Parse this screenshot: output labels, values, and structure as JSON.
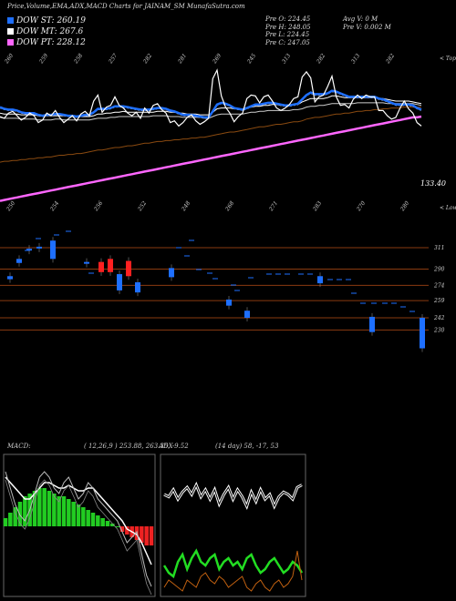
{
  "header": {
    "title": "Price,Volume,EMA,ADX,MACD Charts for JAINAM_SM MunafaSutra.com"
  },
  "legend": [
    {
      "label": "DOW ST: 260.19",
      "color": "#1e6fff"
    },
    {
      "label": "DOW MT: 267.6",
      "color": "#ffffff"
    },
    {
      "label": "DOW PT: 228.12",
      "color": "#ff66ff"
    }
  ],
  "info": {
    "col1": [
      "Pre  O: 224.45",
      "Pre  H: 248.05",
      "Pre  L: 224.45",
      "Pre  C: 247.05"
    ],
    "col2": [
      "Avg V: 0  M",
      "Pre  V: 0.002  M"
    ]
  },
  "right_labels": {
    "tops": "< Tops",
    "lows": "< Lows"
  },
  "price_label": "133.40",
  "chart_data": [
    {
      "type": "line",
      "name": "price",
      "top_labels": [
        "260",
        "259",
        "258",
        "257",
        "282",
        "281",
        "269",
        "245",
        "313",
        "282",
        "313",
        "282"
      ],
      "bottom_labels": [
        "250",
        "254",
        "256",
        "252",
        "248",
        "268",
        "271",
        "283",
        "270",
        "280"
      ],
      "x": [
        0,
        1,
        2,
        3,
        4,
        5,
        6,
        7,
        8,
        9,
        10,
        11,
        12,
        13,
        14,
        15,
        16,
        17,
        18,
        19,
        20,
        21,
        22,
        23,
        24,
        25,
        26,
        27,
        28,
        29,
        30,
        31,
        32,
        33,
        34,
        35,
        36,
        37,
        38,
        39,
        40,
        41,
        42,
        43,
        44,
        45,
        46,
        47,
        48,
        49,
        50,
        51,
        52,
        53,
        54,
        55,
        56,
        57,
        58,
        59,
        60,
        61,
        62,
        63,
        64,
        65,
        66,
        67,
        68,
        69,
        70,
        71,
        72,
        73,
        74,
        75,
        76,
        77,
        78,
        79,
        80,
        81,
        82,
        83,
        84,
        85,
        86,
        87,
        88,
        89,
        90,
        91,
        92,
        93,
        94,
        95,
        96,
        97,
        98,
        99
      ],
      "close": [
        258,
        256,
        262,
        264,
        259,
        254,
        257,
        262,
        259,
        251,
        254,
        262,
        259,
        265,
        257,
        251,
        255,
        259,
        253,
        261,
        264,
        259,
        276,
        283,
        263,
        269,
        271,
        281,
        271,
        268,
        262,
        259,
        263,
        256,
        268,
        262,
        271,
        273,
        266,
        262,
        251,
        253,
        247,
        251,
        257,
        260,
        253,
        249,
        252,
        256,
        302,
        312,
        282,
        269,
        262,
        252,
        258,
        262,
        279,
        283,
        282,
        274,
        281,
        283,
        276,
        268,
        265,
        268,
        272,
        279,
        281,
        304,
        310,
        303,
        275,
        281,
        283,
        293,
        305,
        281,
        271,
        272,
        268,
        278,
        283,
        279,
        283,
        281,
        281,
        265,
        265,
        259,
        255,
        257,
        268,
        276,
        267,
        262,
        251,
        247
      ],
      "ema_short": [
        268,
        266,
        265,
        265,
        264,
        262,
        261,
        261,
        261,
        259,
        258,
        259,
        259,
        260,
        260,
        259,
        258,
        258,
        257,
        258,
        259,
        259,
        262,
        266,
        266,
        266,
        267,
        269,
        269,
        269,
        268,
        267,
        266,
        265,
        265,
        265,
        266,
        267,
        267,
        266,
        264,
        263,
        261,
        259,
        259,
        259,
        258,
        257,
        256,
        256,
        263,
        271,
        273,
        272,
        270,
        267,
        266,
        265,
        267,
        269,
        271,
        271,
        272,
        273,
        273,
        272,
        271,
        270,
        270,
        271,
        272,
        277,
        282,
        285,
        283,
        283,
        283,
        284,
        287,
        286,
        284,
        282,
        280,
        280,
        280,
        280,
        280,
        280,
        280,
        278,
        277,
        275,
        273,
        271,
        271,
        271,
        271,
        270,
        267,
        265
      ],
      "ema_long": [
        257,
        256,
        256,
        256,
        256,
        255,
        255,
        255,
        255,
        254,
        254,
        254,
        254,
        255,
        255,
        254,
        254,
        254,
        254,
        254,
        254,
        254,
        255,
        256,
        256,
        256,
        257,
        257,
        258,
        258,
        258,
        258,
        258,
        258,
        258,
        258,
        259,
        259,
        259,
        259,
        258,
        258,
        258,
        257,
        257,
        257,
        257,
        257,
        256,
        256,
        258,
        260,
        261,
        261,
        261,
        261,
        261,
        261,
        262,
        263,
        263,
        264,
        264,
        265,
        265,
        265,
        265,
        265,
        265,
        266,
        266,
        267,
        269,
        270,
        270,
        271,
        271,
        272,
        273,
        273,
        273,
        273,
        273,
        273,
        274,
        274,
        274,
        274,
        274,
        274,
        274,
        273,
        273,
        273,
        273,
        273,
        273,
        273,
        272,
        271
      ],
      "ema_mid": [
        262,
        261,
        261,
        261,
        261,
        260,
        260,
        260,
        260,
        259,
        259,
        259,
        259,
        259,
        259,
        259,
        259,
        258,
        258,
        258,
        258,
        258,
        259,
        261,
        261,
        262,
        262,
        263,
        263,
        264,
        263,
        263,
        263,
        263,
        263,
        263,
        263,
        264,
        264,
        264,
        263,
        263,
        262,
        262,
        261,
        261,
        261,
        260,
        260,
        260,
        263,
        267,
        268,
        268,
        268,
        267,
        267,
        267,
        268,
        269,
        270,
        270,
        271,
        271,
        272,
        272,
        271,
        271,
        271,
        272,
        272,
        275,
        277,
        279,
        279,
        279,
        279,
        280,
        282,
        282,
        281,
        280,
        280,
        280,
        280,
        280,
        280,
        280,
        280,
        279,
        279,
        278,
        277,
        276,
        276,
        276,
        276,
        275,
        274,
        273
      ],
      "ema_brown": [
        205,
        206,
        206,
        207,
        207,
        208,
        208,
        209,
        209,
        210,
        210,
        211,
        211,
        212,
        213,
        213,
        214,
        214,
        215,
        215,
        216,
        217,
        218,
        219,
        219,
        220,
        221,
        222,
        222,
        223,
        224,
        224,
        225,
        226,
        227,
        227,
        228,
        229,
        229,
        230,
        230,
        231,
        231,
        232,
        232,
        233,
        233,
        234,
        234,
        235,
        236,
        237,
        238,
        239,
        240,
        240,
        241,
        242,
        243,
        244,
        245,
        246,
        246,
        247,
        248,
        249,
        249,
        250,
        251,
        252,
        252,
        253,
        255,
        256,
        257,
        257,
        258,
        259,
        260,
        261,
        261,
        262,
        262,
        263,
        264,
        264,
        265,
        265,
        266,
        266,
        267,
        267,
        268,
        268,
        268,
        269,
        269,
        269,
        269,
        269
      ],
      "dow_pt": [
        160,
        161,
        162,
        163,
        164,
        165,
        166,
        167,
        168,
        169,
        170,
        171,
        172,
        173,
        174,
        175,
        176,
        177,
        178,
        179,
        180,
        181,
        182,
        183,
        184,
        185,
        186,
        187,
        188,
        189,
        190,
        191,
        192,
        193,
        194,
        195,
        196,
        197,
        198,
        199,
        200,
        201,
        202,
        203,
        204,
        205,
        206,
        207,
        208,
        209,
        210,
        211,
        212,
        213,
        214,
        215,
        216,
        217,
        218,
        219,
        220,
        221,
        222,
        223,
        224,
        225,
        226,
        227,
        228,
        229,
        230,
        231,
        232,
        233,
        234,
        235,
        236,
        237,
        238,
        239,
        240,
        241,
        242,
        243,
        244,
        245,
        246,
        247,
        248,
        249,
        250,
        251,
        252,
        253,
        254,
        255,
        256,
        257,
        257,
        258
      ]
    },
    {
      "type": "bar",
      "name": "volume-candles",
      "levels": [
        311,
        290,
        274,
        259,
        242,
        230
      ],
      "candles": [
        {
          "x": 8,
          "o": 283,
          "c": 280,
          "col": "blue"
        },
        {
          "x": 18,
          "o": 300,
          "c": 296,
          "col": "blue"
        },
        {
          "x": 29,
          "o": 310,
          "c": 310,
          "col": "blue"
        },
        {
          "x": 40,
          "o": 312,
          "c": 312,
          "col": "blue"
        },
        {
          "x": 55,
          "o": 318,
          "c": 300,
          "col": "blue"
        },
        {
          "x": 92,
          "o": 297,
          "c": 297,
          "col": "blue"
        },
        {
          "x": 108,
          "o": 297,
          "c": 287,
          "col": "red"
        },
        {
          "x": 118,
          "o": 300,
          "c": 287,
          "col": "red"
        },
        {
          "x": 128,
          "o": 285,
          "c": 269,
          "col": "blue"
        },
        {
          "x": 138,
          "o": 298,
          "c": 283,
          "col": "red"
        },
        {
          "x": 148,
          "o": 277,
          "c": 267,
          "col": "blue"
        },
        {
          "x": 185,
          "o": 291,
          "c": 282,
          "col": "blue"
        },
        {
          "x": 248,
          "o": 260,
          "c": 254,
          "col": "blue"
        },
        {
          "x": 268,
          "o": 249,
          "c": 242,
          "col": "blue"
        },
        {
          "x": 348,
          "o": 283,
          "c": 276,
          "col": "blue"
        },
        {
          "x": 405,
          "o": 243,
          "c": 228,
          "col": "blue"
        },
        {
          "x": 460,
          "o": 242,
          "c": 212,
          "col": "blue"
        }
      ]
    },
    {
      "type": "line",
      "name": "MACD",
      "title": "MACD",
      "params": "( 12,26,9 ) 253.88, 263.35, -9.52",
      "histogram": [
        3,
        5,
        7,
        9,
        11,
        12,
        13,
        14,
        14,
        13,
        12,
        11,
        11,
        10,
        9,
        8,
        7,
        6,
        5,
        4,
        3,
        2,
        1,
        0,
        -2,
        -3,
        -4,
        -5,
        -6,
        -7,
        -7
      ],
      "macd_line": [
        20,
        14,
        8,
        4,
        2,
        6,
        12,
        18,
        20,
        18,
        14,
        12,
        16,
        18,
        14,
        10,
        12,
        16,
        14,
        10,
        8,
        6,
        4,
        2,
        -2,
        -6,
        -4,
        -2,
        -10,
        -18,
        -22
      ],
      "signal_line": [
        18,
        16,
        14,
        12,
        10,
        10,
        12,
        14,
        16,
        16,
        15,
        14,
        14,
        15,
        14,
        13,
        13,
        14,
        14,
        12,
        10,
        8,
        6,
        4,
        2,
        -1,
        -2,
        -3,
        -6,
        -10,
        -14
      ]
    },
    {
      "type": "line",
      "name": "ADX",
      "title": "ADX",
      "params": "(14 day) 58, -17, 53",
      "adx": [
        40,
        38,
        44,
        36,
        42,
        46,
        40,
        48,
        38,
        44,
        36,
        44,
        32,
        40,
        46,
        36,
        44,
        38,
        30,
        42,
        34,
        44,
        36,
        40,
        30,
        38,
        42,
        40,
        36,
        46,
        48
      ],
      "plus_di": [
        22,
        18,
        16,
        24,
        28,
        20,
        26,
        30,
        24,
        22,
        26,
        28,
        20,
        24,
        26,
        22,
        24,
        20,
        26,
        28,
        22,
        18,
        20,
        24,
        26,
        22,
        18,
        20,
        24,
        22,
        18
      ],
      "minus_di": [
        10,
        14,
        12,
        10,
        8,
        14,
        12,
        10,
        16,
        18,
        14,
        12,
        16,
        14,
        10,
        12,
        14,
        16,
        10,
        8,
        12,
        14,
        10,
        8,
        12,
        14,
        10,
        12,
        16,
        30,
        14
      ]
    }
  ]
}
